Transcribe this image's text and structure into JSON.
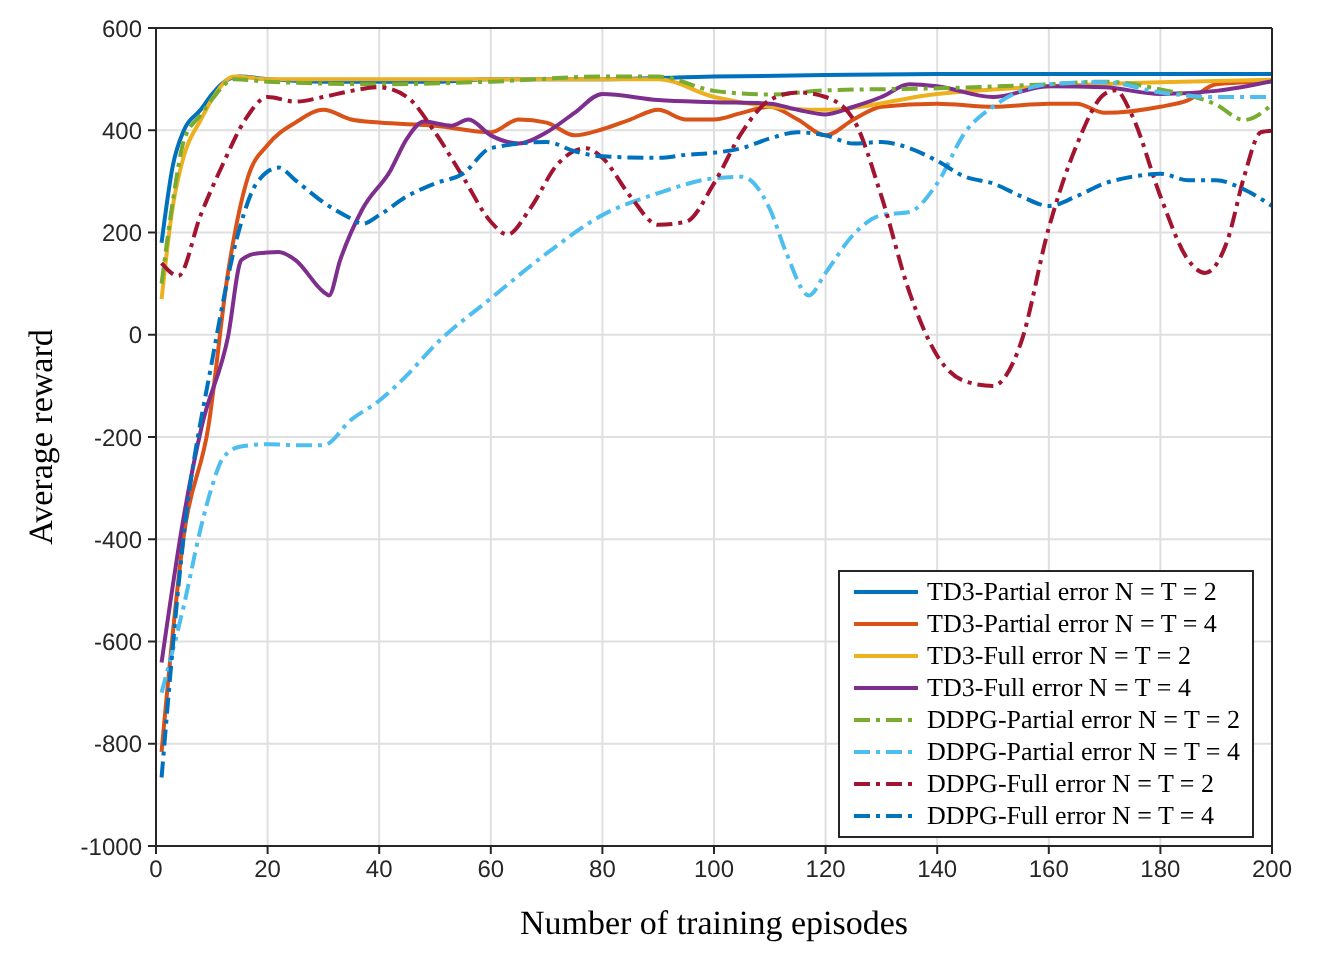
{
  "chart_data": {
    "type": "line",
    "xlabel": "Number of training episodes",
    "ylabel": "Average reward",
    "xlim": [
      0,
      200
    ],
    "ylim": [
      -1000,
      600
    ],
    "xticks": [
      0,
      20,
      40,
      60,
      80,
      100,
      120,
      140,
      160,
      180,
      200
    ],
    "yticks": [
      -1000,
      -800,
      -600,
      -400,
      -200,
      0,
      200,
      400,
      600
    ],
    "grid": true,
    "legend": "bottom right",
    "marker": "none",
    "series": [
      {
        "name": "TD3-Partial error N = T = 2",
        "color": "#0072bd",
        "line_style": "solid",
        "x": [
          1,
          3,
          5,
          8,
          10,
          13,
          15,
          20,
          30,
          40,
          50,
          60,
          80,
          100,
          120,
          140,
          160,
          200
        ],
        "values": [
          180,
          330,
          400,
          440,
          470,
          500,
          505,
          500,
          495,
          495,
          495,
          500,
          500,
          505,
          508,
          510,
          510,
          510
        ]
      },
      {
        "name": "TD3-Partial error N = T = 4",
        "color": "#d95319",
        "line_style": "solid",
        "x": [
          1,
          5,
          9.4,
          12.9,
          16.5,
          20,
          25,
          30,
          35,
          40,
          50,
          60,
          65,
          70,
          75,
          80,
          85,
          90,
          95,
          100,
          105,
          110,
          115,
          120,
          125,
          130,
          140,
          150,
          160,
          165,
          170,
          180,
          185,
          190,
          200
        ],
        "values": [
          -816,
          -391,
          -179,
          121,
          309,
          371,
          415,
          440,
          421,
          415,
          409,
          396,
          421,
          415,
          390,
          402,
          421,
          440,
          421,
          421,
          434,
          446,
          421,
          390,
          421,
          446,
          452,
          446,
          452,
          452,
          434,
          446,
          459,
          490,
          496
        ]
      },
      {
        "name": "TD3-Full error N = T = 2",
        "color": "#edb120",
        "line_style": "solid",
        "x": [
          1,
          3,
          5,
          8,
          10,
          14,
          20,
          40,
          60,
          80,
          90,
          100,
          120,
          140,
          160,
          180,
          200
        ],
        "values": [
          70,
          250,
          350,
          420,
          460,
          505,
          500,
          500,
          500,
          500,
          500,
          465,
          440,
          471,
          486,
          494,
          499
        ]
      },
      {
        "name": "TD3-Full error N = T = 4",
        "color": "#7e2f8e",
        "line_style": "solid",
        "x": [
          1,
          5,
          8.2,
          12.9,
          15.3,
          18,
          22,
          25,
          30,
          31,
          33,
          37,
          42,
          45,
          48,
          53,
          56,
          60,
          65,
          70,
          75,
          80,
          90,
          100,
          110,
          115,
          120,
          125,
          130,
          135,
          140,
          150,
          160,
          170,
          180,
          190,
          200
        ],
        "values": [
          -641,
          -354,
          -179,
          -4,
          146,
          159,
          162,
          146,
          84,
          77,
          146,
          246,
          321,
          384,
          417,
          409,
          421,
          390,
          374,
          396,
          434,
          471,
          459,
          455,
          452,
          440,
          431,
          446,
          465,
          490,
          486,
          465,
          486,
          484,
          471,
          477,
          496
        ]
      },
      {
        "name": "DDPG-Partial error N = T = 2",
        "color": "#77ac30",
        "line_style": "dashed",
        "x": [
          1,
          3,
          5,
          8,
          10,
          14,
          20,
          40,
          60,
          80,
          90,
          100,
          110,
          120,
          140,
          160,
          170,
          180,
          190,
          195,
          200
        ],
        "values": [
          100,
          260,
          380,
          430,
          460,
          500,
          495,
          490,
          495,
          505,
          505,
          477,
          470,
          478,
          482,
          490,
          495,
          480,
          450,
          420,
          450
        ]
      },
      {
        "name": "DDPG-Partial error N = T = 4",
        "color": "#4dbeee",
        "line_style": "dashed",
        "x": [
          1,
          5,
          8,
          10,
          12,
          15,
          20,
          25,
          30,
          35,
          40,
          45,
          50,
          60,
          70,
          80,
          90,
          100,
          105,
          110,
          113,
          117,
          120,
          125,
          130,
          135,
          140,
          145,
          150,
          160,
          170,
          180,
          190,
          200
        ],
        "values": [
          -700,
          -529,
          -379,
          -298,
          -241,
          -219,
          -214,
          -216,
          -216,
          -166,
          -129,
          -79,
          -20,
          71,
          159,
          234,
          277,
          306,
          309,
          246,
          159,
          77,
          121,
          196,
          234,
          240,
          296,
          396,
          446,
          490,
          494,
          474,
          465,
          465
        ]
      },
      {
        "name": "DDPG-Full error N = T = 2",
        "color": "#a2142f",
        "line_style": "dashed",
        "x": [
          1,
          4,
          8,
          12,
          16,
          20,
          25,
          30,
          35,
          40,
          45,
          50,
          55,
          60,
          63,
          67,
          72,
          77,
          80,
          85,
          90,
          95,
          100,
          105,
          110,
          115,
          120,
          125,
          130,
          135,
          140,
          145,
          150,
          155,
          160,
          165,
          170,
          172,
          175,
          180,
          185,
          188,
          192,
          195,
          198,
          200
        ],
        "values": [
          140,
          115,
          234,
          334,
          421,
          465,
          456,
          465,
          477,
          484,
          465,
          396,
          309,
          221,
          196,
          246,
          334,
          365,
          346,
          271,
          215,
          221,
          296,
          396,
          459,
          474,
          465,
          421,
          271,
          84,
          -41,
          -91,
          -100,
          -16,
          209,
          371,
          471,
          478,
          427,
          271,
          146,
          121,
          184,
          309,
          396,
          399
        ]
      },
      {
        "name": "DDPG-Full error N = T = 4",
        "color": "#0072bd",
        "line_style": "dashed",
        "x": [
          1,
          5,
          10,
          15,
          18,
          22,
          25,
          30,
          35,
          37,
          40,
          45,
          50,
          55,
          60,
          70,
          75,
          80,
          90,
          95,
          100,
          105,
          110,
          115,
          120,
          125,
          130,
          135,
          140,
          145,
          150,
          155,
          160,
          165,
          170,
          175,
          180,
          185,
          190,
          195,
          200
        ],
        "values": [
          -866,
          -391,
          -54,
          209,
          296,
          327,
          302,
          259,
          227,
          217,
          234,
          271,
          296,
          315,
          365,
          377,
          359,
          349,
          346,
          352,
          356,
          365,
          384,
          396,
          390,
          374,
          377,
          365,
          340,
          309,
          296,
          271,
          252,
          271,
          296,
          309,
          315,
          302,
          302,
          284,
          252
        ]
      }
    ]
  }
}
